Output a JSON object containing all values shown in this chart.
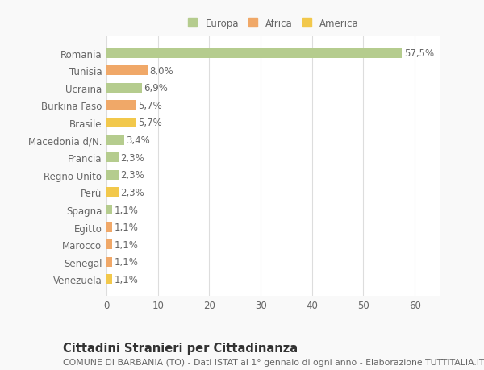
{
  "categories": [
    "Venezuela",
    "Senegal",
    "Marocco",
    "Egitto",
    "Spagna",
    "Perù",
    "Regno Unito",
    "Francia",
    "Macedonia d/N.",
    "Brasile",
    "Burkina Faso",
    "Ucraina",
    "Tunisia",
    "Romania"
  ],
  "values": [
    1.1,
    1.1,
    1.1,
    1.1,
    1.1,
    2.3,
    2.3,
    2.3,
    3.4,
    5.7,
    5.7,
    6.9,
    8.0,
    57.5
  ],
  "labels": [
    "1,1%",
    "1,1%",
    "1,1%",
    "1,1%",
    "1,1%",
    "2,3%",
    "2,3%",
    "2,3%",
    "3,4%",
    "5,7%",
    "5,7%",
    "6,9%",
    "8,0%",
    "57,5%"
  ],
  "colors": [
    "#f2c84b",
    "#f0a868",
    "#f0a868",
    "#f0a868",
    "#b5cc8e",
    "#f2c84b",
    "#b5cc8e",
    "#b5cc8e",
    "#b5cc8e",
    "#f2c84b",
    "#f0a868",
    "#b5cc8e",
    "#f0a868",
    "#b5cc8e"
  ],
  "legend_labels": [
    "Europa",
    "Africa",
    "America"
  ],
  "legend_colors": [
    "#b5cc8e",
    "#f0a868",
    "#f2c84b"
  ],
  "title": "Cittadini Stranieri per Cittadinanza",
  "subtitle": "COMUNE DI BARBANIA (TO) - Dati ISTAT al 1° gennaio di ogni anno - Elaborazione TUTTITALIA.IT",
  "xlim": [
    0,
    65
  ],
  "xticks": [
    0,
    10,
    20,
    30,
    40,
    50,
    60
  ],
  "bg_color": "#f9f9f9",
  "plot_bg_color": "#ffffff",
  "grid_color": "#dddddd",
  "text_color": "#666666",
  "label_fontsize": 8.5,
  "tick_fontsize": 8.5,
  "title_fontsize": 10.5,
  "subtitle_fontsize": 7.8,
  "bar_height": 0.55
}
